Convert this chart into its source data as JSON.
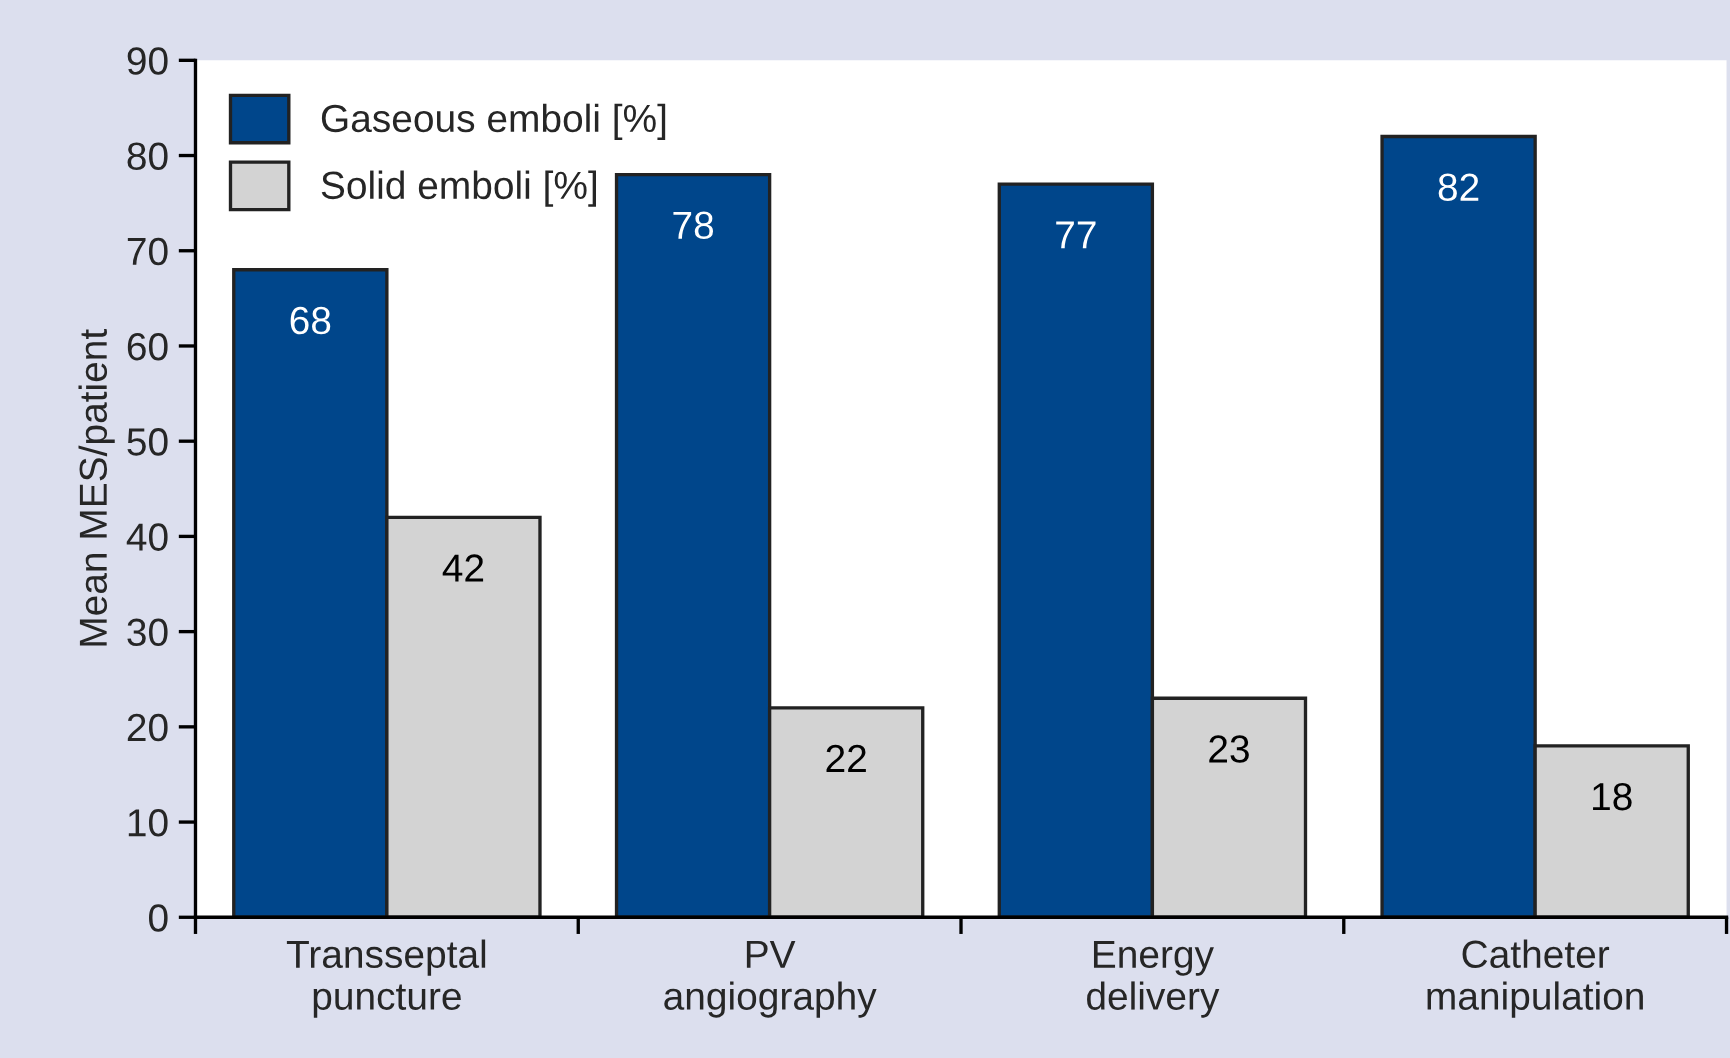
{
  "chart_data": {
    "type": "bar",
    "ylabel": "Mean MES/patient",
    "categories": [
      "Transseptal\npuncture",
      "PV\nangiography",
      "Energy\ndelivery",
      "Catheter\nmanipulation"
    ],
    "series": [
      {
        "name": "Gaseous emboli [%]",
        "color": "#00468b",
        "values": [
          68,
          78,
          77,
          82
        ]
      },
      {
        "name": "Solid emboli [%]",
        "color": "#d3d3d3",
        "values": [
          42,
          22,
          23,
          18
        ]
      }
    ],
    "ylim": [
      0,
      90
    ],
    "yticks": [
      0,
      10,
      20,
      30,
      40,
      50,
      60,
      70,
      80,
      90
    ],
    "grid": false,
    "legend": "top left",
    "data_labels": true
  }
}
